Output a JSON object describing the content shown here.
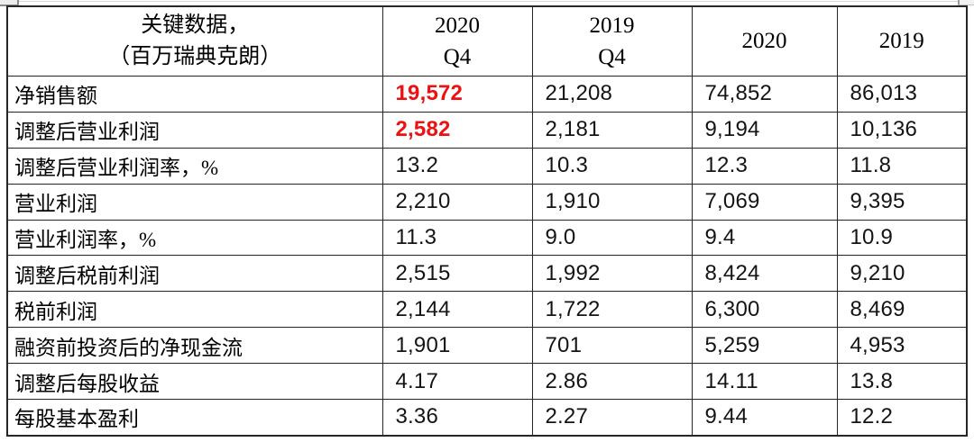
{
  "table": {
    "header": {
      "metric_line1": "关键数据，",
      "metric_line2": "（百万瑞典克朗）",
      "q4_2020_year": "2020",
      "q4_2020_quarter": "Q4",
      "q4_2019_year": "2019",
      "q4_2019_quarter": "Q4",
      "fy_2020": "2020",
      "fy_2019": "2019"
    },
    "rows": [
      {
        "label": "净销售额",
        "q4_2020": "19,572",
        "q4_2019": "21,208",
        "fy_2020": "74,852",
        "fy_2019": "86,013",
        "highlight": true
      },
      {
        "label": "调整后营业利润",
        "q4_2020": "2,582",
        "q4_2019": "2,181",
        "fy_2020": "9,194",
        "fy_2019": "10,136",
        "highlight": true
      },
      {
        "label": "调整后营业利润率，%",
        "q4_2020": "13.2",
        "q4_2019": "10.3",
        "fy_2020": "12.3",
        "fy_2019": "11.8",
        "highlight": false
      },
      {
        "label": "营业利润",
        "q4_2020": "2,210",
        "q4_2019": "1,910",
        "fy_2020": "7,069",
        "fy_2019": "9,395",
        "highlight": false
      },
      {
        "label": "营业利润率，%",
        "q4_2020": "11.3",
        "q4_2019": "9.0",
        "fy_2020": "9.4",
        "fy_2019": "10.9",
        "highlight": false
      },
      {
        "label": "调整后税前利润",
        "q4_2020": "2,515",
        "q4_2019": "1,992",
        "fy_2020": "8,424",
        "fy_2019": "9,210",
        "highlight": false
      },
      {
        "label": "税前利润",
        "q4_2020": "2,144",
        "q4_2019": "1,722",
        "fy_2020": "6,300",
        "fy_2019": "8,469",
        "highlight": false
      },
      {
        "label": "融资前投资后的净现金流",
        "q4_2020": "1,901",
        "q4_2019": "701",
        "fy_2020": "5,259",
        "fy_2019": "4,953",
        "highlight": false
      },
      {
        "label": "调整后每股收益",
        "q4_2020": "4.17",
        "q4_2019": "2.86",
        "fy_2020": "14.11",
        "fy_2019": "13.8",
        "highlight": false
      },
      {
        "label": "每股基本盈利",
        "q4_2020": "3.36",
        "q4_2019": "2.27",
        "fy_2020": "9.44",
        "fy_2019": "12.2",
        "highlight": false
      }
    ]
  },
  "colors": {
    "highlight_red": "#ee1111",
    "number_text": "#141414",
    "border": "#262626"
  }
}
